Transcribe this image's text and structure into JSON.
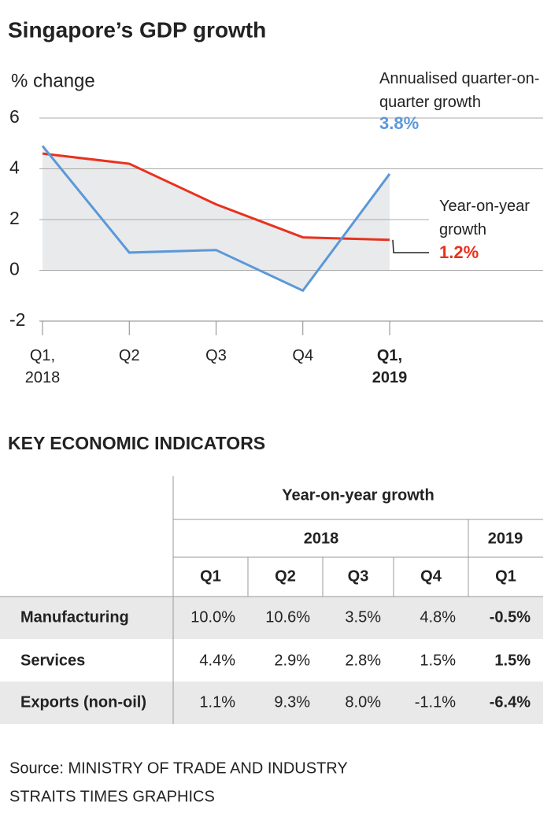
{
  "chart_data": {
    "type": "line",
    "title": "Singapore’s GDP growth",
    "y_label": "% change",
    "categories": [
      "Q1, 2018",
      "Q2",
      "Q3",
      "Q4",
      "Q1, 2019"
    ],
    "ylim": [
      -2,
      6
    ],
    "yticks": [
      -2,
      0,
      2,
      4,
      6
    ],
    "grid": true,
    "series": [
      {
        "name": "Annualised quarter-on-quarter growth",
        "color": "#5b98d8",
        "values": [
          4.9,
          0.7,
          0.8,
          -0.8,
          3.8
        ],
        "value_labels": [
          null,
          null,
          null,
          null,
          "3.8%"
        ]
      },
      {
        "name": "Year-on-year growth",
        "color": "#e8321e",
        "values": [
          4.6,
          4.2,
          2.6,
          1.3,
          1.2
        ],
        "value_labels": [
          null,
          null,
          null,
          null,
          "1.2%"
        ]
      }
    ]
  },
  "table": {
    "title": "KEY ECONOMIC INDICATORS",
    "header": "Year-on-year growth",
    "years": [
      "2018",
      "2019"
    ],
    "columns": [
      "Q1",
      "Q2",
      "Q3",
      "Q4",
      "Q1"
    ],
    "rows": [
      [
        "Manufacturing",
        "10.0%",
        "10.6%",
        "3.5%",
        "4.8%",
        "-0.5%"
      ],
      [
        "Services",
        "4.4%",
        "2.9%",
        "2.8%",
        "1.5%",
        "1.5%"
      ],
      [
        "Exports (non-oil)",
        "1.1%",
        "9.3%",
        "8.0%",
        "-1.1%",
        "-6.4%"
      ]
    ]
  },
  "footer": {
    "source": "Source: MINISTRY OF TRADE AND INDUSTRY",
    "credit": "STRAITS TIMES GRAPHICS"
  }
}
